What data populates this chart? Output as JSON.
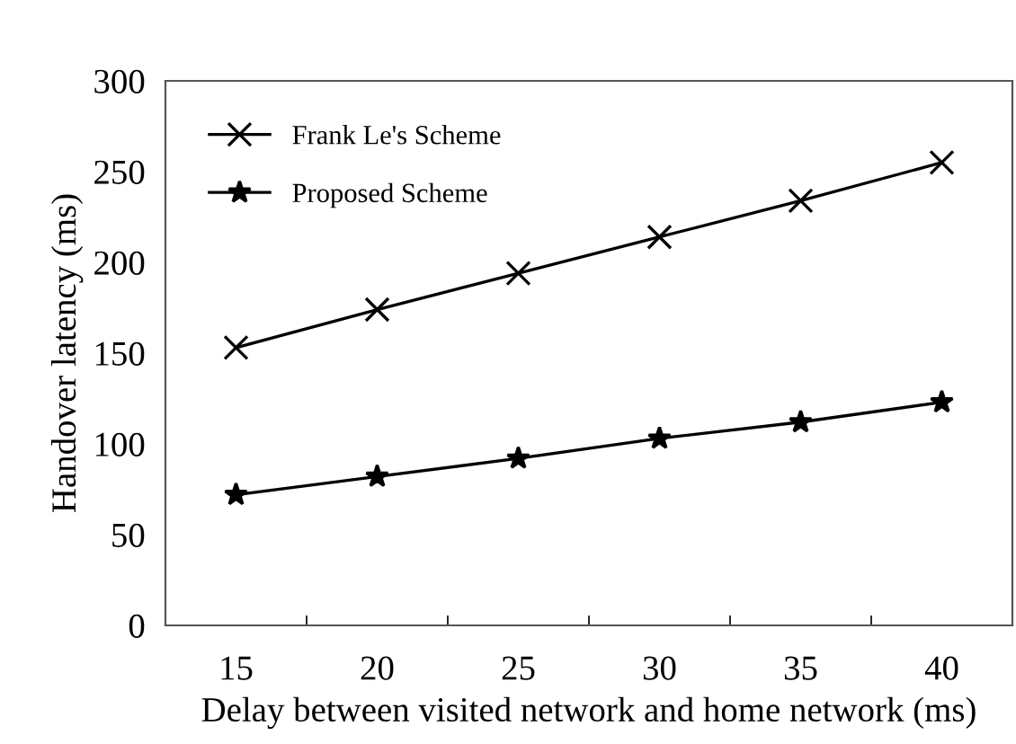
{
  "chart_data": {
    "type": "line",
    "xlabel": "Delay between visited network and home network (ms)",
    "ylabel": "Handover latency (ms)",
    "categories": [
      "15",
      "20",
      "25",
      "30",
      "35",
      "40"
    ],
    "series": [
      {
        "name": "Frank Le's Scheme",
        "color": "#000000",
        "marker": "cross",
        "values": [
          153,
          174,
          194,
          214,
          234,
          255
        ]
      },
      {
        "name": "Proposed Scheme",
        "color": "#000000",
        "marker": "star",
        "values": [
          72,
          82,
          92,
          103,
          112,
          123
        ]
      }
    ],
    "ylim": [
      0,
      300
    ],
    "yticks": [
      0,
      50,
      100,
      150,
      200,
      250,
      300
    ],
    "grid": false,
    "legend": "top left",
    "line_style": "solid"
  }
}
